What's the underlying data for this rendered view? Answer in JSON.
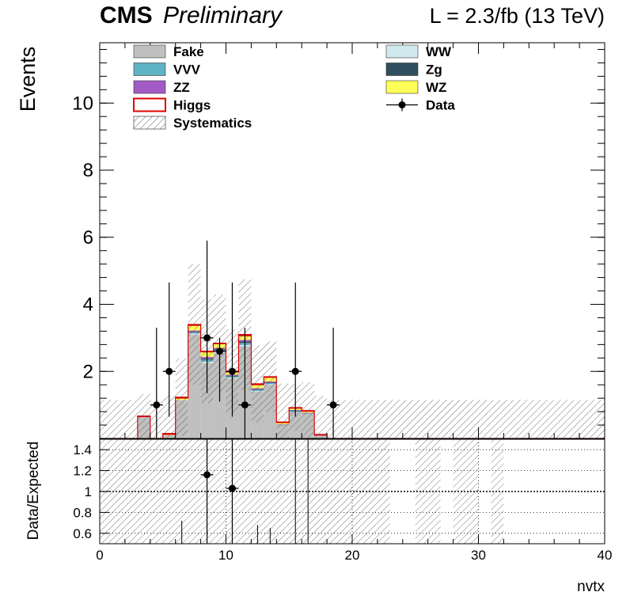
{
  "header": {
    "experiment": "CMS",
    "status": "Preliminary",
    "lumi": "L = 2.3/fb (13 TeV)"
  },
  "chart_data": [
    {
      "type": "bar",
      "subtype": "stacked-histogram",
      "ylabel": "Events",
      "xlim": [
        0,
        40
      ],
      "ylim": [
        0,
        11.8
      ],
      "y_ticks": [
        2,
        4,
        6,
        8,
        10
      ],
      "bin_edges": [
        0,
        1,
        2,
        3,
        4,
        5,
        6,
        7,
        8,
        9,
        10,
        11,
        12,
        13,
        14,
        15,
        16,
        17,
        18,
        19,
        20,
        21,
        22,
        23,
        24,
        25,
        26,
        27,
        28,
        29,
        30,
        31,
        32,
        33,
        34,
        35,
        36,
        37,
        38,
        39,
        40
      ],
      "legend_position": "top",
      "legend": [
        {
          "label": "Fake",
          "color": "#c0c0c0",
          "hatched": false
        },
        {
          "label": "WW",
          "color": "#cfe9ef",
          "hatched": false
        },
        {
          "label": "VVV",
          "color": "#5fb3c4",
          "hatched": false
        },
        {
          "label": "Zg",
          "color": "#2f4f5f",
          "hatched": false
        },
        {
          "label": "ZZ",
          "color": "#a25bc6",
          "hatched": false
        },
        {
          "label": "WZ",
          "color": "#ffff5a",
          "hatched": false
        },
        {
          "label": "Higgs",
          "color": "#e00000",
          "hatched": false
        },
        {
          "label": "Data",
          "color": "#000000",
          "hatched": false
        },
        {
          "label": "Systematics",
          "color": "#7a7a7a",
          "hatched": true
        }
      ],
      "stack_series": [
        {
          "name": "Fake",
          "color": "#c0c0c0",
          "values": [
            0,
            0,
            0,
            0.65,
            0,
            0.1,
            1.15,
            3.1,
            2.25,
            2.55,
            1.8,
            2.75,
            1.4,
            1.6,
            0.4,
            0.8,
            0.75,
            0.08,
            0,
            0,
            0,
            0,
            0,
            0,
            0,
            0,
            0,
            0,
            0,
            0,
            0,
            0,
            0,
            0,
            0,
            0,
            0,
            0,
            0,
            0
          ]
        },
        {
          "name": "WW",
          "color": "#cfe9ef",
          "values": [
            0,
            0,
            0,
            0,
            0,
            0,
            0,
            0.03,
            0.04,
            0.03,
            0.02,
            0.04,
            0.02,
            0.02,
            0,
            0.01,
            0,
            0,
            0,
            0,
            0,
            0,
            0,
            0,
            0,
            0,
            0,
            0,
            0,
            0,
            0,
            0,
            0,
            0,
            0,
            0,
            0,
            0,
            0,
            0
          ]
        },
        {
          "name": "VVV",
          "color": "#5fb3c4",
          "values": [
            0,
            0,
            0,
            0,
            0,
            0,
            0,
            0.03,
            0.06,
            0.05,
            0.03,
            0.06,
            0.03,
            0.03,
            0.01,
            0.01,
            0.01,
            0,
            0,
            0,
            0,
            0,
            0,
            0,
            0,
            0,
            0,
            0,
            0,
            0,
            0,
            0,
            0,
            0,
            0,
            0,
            0,
            0,
            0,
            0
          ]
        },
        {
          "name": "Zg",
          "color": "#2f4f5f",
          "values": [
            0,
            0,
            0,
            0,
            0,
            0,
            0,
            0.02,
            0.03,
            0.03,
            0.02,
            0.04,
            0.02,
            0.02,
            0,
            0.01,
            0,
            0,
            0,
            0,
            0,
            0,
            0,
            0,
            0,
            0,
            0,
            0,
            0,
            0,
            0,
            0,
            0,
            0,
            0,
            0,
            0,
            0,
            0,
            0
          ]
        },
        {
          "name": "ZZ",
          "color": "#a25bc6",
          "values": [
            0,
            0,
            0,
            0,
            0,
            0,
            0,
            0.04,
            0.05,
            0.04,
            0.03,
            0.05,
            0.03,
            0.03,
            0.01,
            0.02,
            0.01,
            0.02,
            0,
            0,
            0,
            0,
            0,
            0,
            0,
            0,
            0,
            0,
            0,
            0,
            0,
            0,
            0,
            0,
            0,
            0,
            0,
            0,
            0,
            0
          ]
        },
        {
          "name": "WZ",
          "color": "#ffff5a",
          "values": [
            0,
            0,
            0,
            0,
            0,
            0.02,
            0.05,
            0.15,
            0.15,
            0.12,
            0.08,
            0.12,
            0.1,
            0.12,
            0.05,
            0.05,
            0.05,
            0.01,
            0,
            0,
            0,
            0,
            0,
            0,
            0,
            0,
            0,
            0,
            0,
            0,
            0,
            0,
            0,
            0,
            0,
            0,
            0,
            0,
            0,
            0
          ]
        },
        {
          "name": "Higgs",
          "color": "#e00000",
          "values": [
            0,
            0,
            0,
            0.02,
            0,
            0.03,
            0.03,
            0.03,
            0.02,
            0.02,
            0.02,
            0.04,
            0.03,
            0.02,
            0.02,
            0.02,
            0.01,
            0.01,
            0,
            0,
            0,
            0,
            0,
            0,
            0,
            0,
            0,
            0,
            0,
            0,
            0,
            0,
            0,
            0,
            0,
            0,
            0,
            0,
            0,
            0
          ]
        }
      ],
      "systematics_halfwidth": [
        1.15,
        1.15,
        1.15,
        0.65,
        1.15,
        1.15,
        1.15,
        1.8,
        1.55,
        1.45,
        1.25,
        1.65,
        1.15,
        1.05,
        1.15,
        0.7,
        0.85,
        1.15,
        1.15,
        1.15,
        1.15,
        1.15,
        1.15,
        1.15,
        1.15,
        1.15,
        1.15,
        1.15,
        1.15,
        1.15,
        1.15,
        1.15,
        1.15,
        1.15,
        1.15,
        1.15,
        1.15,
        1.15,
        1.15,
        1.15
      ],
      "data": [
        {
          "x": 4.5,
          "y": 1,
          "err_low": 1,
          "err_high": 2.3
        },
        {
          "x": 5.5,
          "y": 2,
          "err_low": 1.35,
          "err_high": 2.65
        },
        {
          "x": 8.5,
          "y": 3,
          "err_low": 1.65,
          "err_high": 2.9
        },
        {
          "x": 9.5,
          "y": 2.6,
          "err_low": 1.5,
          "err_high": 0.4
        },
        {
          "x": 10.5,
          "y": 2,
          "err_low": 1.35,
          "err_high": 2.65
        },
        {
          "x": 11.5,
          "y": 1,
          "err_low": 1,
          "err_high": 2.3
        },
        {
          "x": 15.5,
          "y": 2,
          "err_low": 1.35,
          "err_high": 2.65
        },
        {
          "x": 18.5,
          "y": 1,
          "err_low": 1,
          "err_high": 2.3
        }
      ]
    },
    {
      "type": "scatter",
      "subtype": "ratio",
      "ylabel": "Data/Expected",
      "xlabel": "nvtx",
      "xlim": [
        0,
        40
      ],
      "ylim": [
        0.5,
        1.5
      ],
      "x_ticks": [
        0,
        10,
        20,
        30,
        40
      ],
      "y_ticks": [
        0.6,
        0.8,
        1,
        1.2,
        1.4
      ],
      "grid": true,
      "reference_line": 1,
      "hatched_bins": [
        0,
        1,
        2,
        3,
        4,
        5,
        6,
        7,
        8,
        9,
        10,
        11,
        12,
        13,
        14,
        15,
        16,
        17,
        18,
        19,
        20,
        21,
        22,
        25,
        26,
        28,
        29,
        31
      ],
      "points": [
        {
          "x": 8.5,
          "y": 1.16,
          "err_low": 0.7,
          "err_high": 1.1
        },
        {
          "x": 10.5,
          "y": 1.03,
          "err_low": 0.7,
          "err_high": 1.3
        }
      ],
      "error_bars_only": [
        {
          "x": 6.5,
          "y_low": 0.5,
          "y_high": 0.72
        },
        {
          "x": 12.5,
          "y_low": 0.5,
          "y_high": 0.68
        },
        {
          "x": 13.5,
          "y_low": 0.5,
          "y_high": 0.65
        },
        {
          "x": 15.5,
          "y_low": 0.5,
          "y_high": 1.5
        },
        {
          "x": 16.5,
          "y_low": 0.5,
          "y_high": 1.5
        }
      ]
    }
  ]
}
